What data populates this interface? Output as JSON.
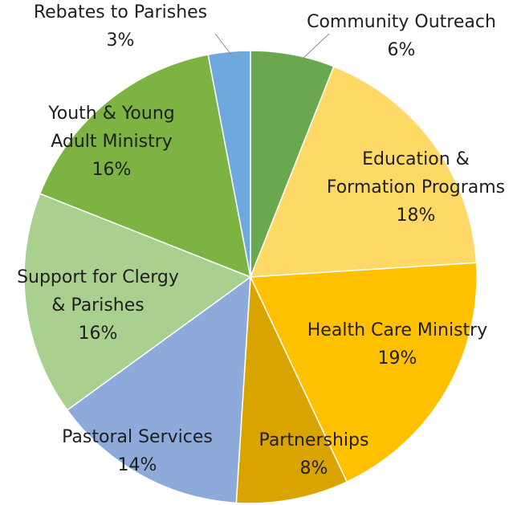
{
  "chart_data": {
    "type": "pie",
    "title": "",
    "start_angle_deg": 0,
    "direction": "clockwise",
    "slices": [
      {
        "label": "Community Outreach",
        "value": 6,
        "value_label": "6%",
        "color": "#6aa84f"
      },
      {
        "label": "Education & Formation Programs",
        "value": 18,
        "value_label": "18%",
        "color": "#ffd966"
      },
      {
        "label": "Health Care Ministry",
        "value": 19,
        "value_label": "19%",
        "color": "#ffc000"
      },
      {
        "label": "Partnerships",
        "value": 8,
        "value_label": "8%",
        "color": "#d9a400"
      },
      {
        "label": "Pastoral Services",
        "value": 14,
        "value_label": "14%",
        "color": "#8eaadb"
      },
      {
        "label": "Support for Clergy & Parishes",
        "value": 16,
        "value_label": "16%",
        "color": "#a9d08e"
      },
      {
        "label": "Youth & Young Adult Ministry",
        "value": 16,
        "value_label": "16%",
        "color": "#7cb342"
      },
      {
        "label": "Rebates to Parishes",
        "value": 3,
        "value_label": "3%",
        "color": "#6fa8dc"
      }
    ]
  }
}
